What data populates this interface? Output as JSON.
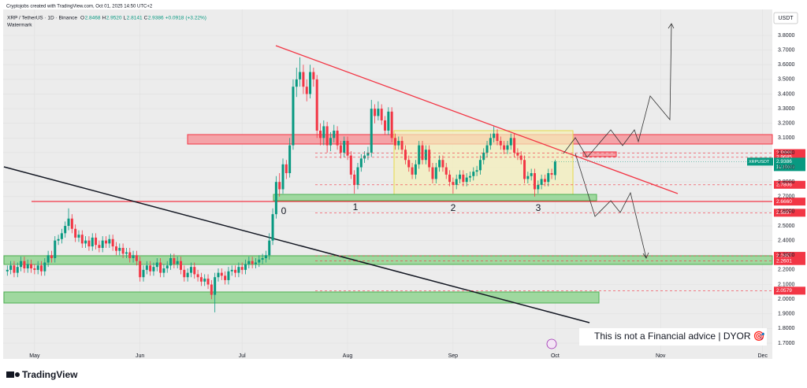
{
  "chart_data": {
    "type": "candlestick",
    "credit": "Cryptojobs created with TradingView.com, Oct 01, 2025 14:50 UTC+2",
    "symbol": "XRP / TetherUS · 1D · Binance",
    "ohlc_letters": [
      "O",
      "H",
      "L",
      "C"
    ],
    "last_value_labels": [
      "2.8468",
      "2.9520",
      "2.8141",
      "2.9386"
    ],
    "change": {
      "value": 0.0918,
      "label": "+0.0918"
    },
    "change_pct": {
      "value": 3.22,
      "label": "(+3.22%)"
    },
    "watermark": "Watermark",
    "currency": "USDT",
    "up_color": "#089981",
    "down_color": "#f23645",
    "xlim": [
      -1,
      226
    ],
    "xticks": [
      {
        "value": 8,
        "label": "May"
      },
      {
        "value": 39,
        "label": "Jun"
      },
      {
        "value": 69,
        "label": "Jul"
      },
      {
        "value": 100,
        "label": "Aug"
      },
      {
        "value": 131,
        "label": "Sep"
      },
      {
        "value": 161,
        "label": "Oct"
      },
      {
        "value": 192,
        "label": "Nov"
      },
      {
        "value": 222,
        "label": "Dec"
      }
    ],
    "ylim": [
      1.6,
      3.96
    ],
    "yticks": [
      {
        "value": 1.7,
        "label": "1.7000"
      },
      {
        "value": 1.8,
        "label": "1.8000"
      },
      {
        "value": 1.9,
        "label": "1.9000"
      },
      {
        "value": 2.0,
        "label": "2.0000"
      },
      {
        "value": 2.1,
        "label": "2.1000"
      },
      {
        "value": 2.2,
        "label": "2.2000"
      },
      {
        "value": 2.3,
        "label": "2.3000"
      },
      {
        "value": 2.4,
        "label": "2.4000"
      },
      {
        "value": 2.5,
        "label": "2.5000"
      },
      {
        "value": 2.6,
        "label": "2.6000"
      },
      {
        "value": 2.7,
        "label": "2.7000"
      },
      {
        "value": 2.8,
        "label": "2.8000"
      },
      {
        "value": 2.9,
        "label": "2.9000"
      },
      {
        "value": 3.0,
        "label": "3.0000"
      },
      {
        "value": 3.1,
        "label": "3.1000"
      },
      {
        "value": 3.2,
        "label": "3.2000"
      },
      {
        "value": 3.3,
        "label": "3.3000"
      },
      {
        "value": 3.4,
        "label": "3.4000"
      },
      {
        "value": 3.5,
        "label": "3.5000"
      },
      {
        "value": 3.6,
        "label": "3.6000"
      },
      {
        "value": 3.7,
        "label": "3.7000"
      },
      {
        "value": 3.8,
        "label": "3.8000"
      }
    ],
    "levels": [
      {
        "value": 2.9969,
        "label": "2.9969",
        "color": "#f23645"
      },
      {
        "value": 2.9685,
        "label": "2.9685",
        "color": "#f23645"
      },
      {
        "value": 2.7806,
        "label": "2.7806",
        "color": "#f23645"
      },
      {
        "value": 2.666,
        "label": "2.6660",
        "color": "#f23645"
      },
      {
        "value": 2.5897,
        "label": "2.5897",
        "color": "#f23645"
      },
      {
        "value": 2.2957,
        "label": "2.2957",
        "color": "#f23645"
      },
      {
        "value": 2.2601,
        "label": "2.2601",
        "color": "#f23645"
      },
      {
        "value": 2.0579,
        "label": "2.0579",
        "color": "#f23645"
      }
    ],
    "last_price": {
      "value": 2.9386,
      "label": "2.9386",
      "name": "XRPUSDT",
      "countdown": "11:10:00",
      "color": "#089981"
    },
    "pattern_labels": [
      "0",
      "1",
      "2",
      "3"
    ],
    "disclaimer": "This is not a Financial advice | DYOR 🎯",
    "brand": "TradingView",
    "ohlc": [
      [
        2.19,
        2.23,
        2.16,
        2.2
      ],
      [
        2.2,
        2.26,
        2.17,
        2.23
      ],
      [
        2.23,
        2.26,
        2.15,
        2.18
      ],
      [
        2.18,
        2.25,
        2.15,
        2.22
      ],
      [
        2.22,
        2.29,
        2.19,
        2.26
      ],
      [
        2.26,
        2.29,
        2.18,
        2.21
      ],
      [
        2.21,
        2.27,
        2.18,
        2.24
      ],
      [
        2.24,
        2.27,
        2.18,
        2.21
      ],
      [
        2.21,
        2.24,
        2.17,
        2.2
      ],
      [
        2.2,
        2.26,
        2.17,
        2.23
      ],
      [
        2.23,
        2.26,
        2.16,
        2.19
      ],
      [
        2.19,
        2.28,
        2.16,
        2.25
      ],
      [
        2.25,
        2.33,
        2.22,
        2.3
      ],
      [
        2.3,
        2.33,
        2.25,
        2.28
      ],
      [
        2.28,
        2.43,
        2.25,
        2.4
      ],
      [
        2.4,
        2.44,
        2.37,
        2.41
      ],
      [
        2.41,
        2.48,
        2.38,
        2.45
      ],
      [
        2.45,
        2.53,
        2.42,
        2.5
      ],
      [
        2.5,
        2.62,
        2.47,
        2.55
      ],
      [
        2.55,
        2.58,
        2.45,
        2.48
      ],
      [
        2.48,
        2.51,
        2.39,
        2.42
      ],
      [
        2.42,
        2.47,
        2.39,
        2.44
      ],
      [
        2.44,
        2.47,
        2.35,
        2.38
      ],
      [
        2.38,
        2.43,
        2.35,
        2.4
      ],
      [
        2.4,
        2.43,
        2.33,
        2.36
      ],
      [
        2.36,
        2.45,
        2.33,
        2.42
      ],
      [
        2.42,
        2.45,
        2.34,
        2.37
      ],
      [
        2.37,
        2.4,
        2.32,
        2.35
      ],
      [
        2.35,
        2.43,
        2.32,
        2.4
      ],
      [
        2.4,
        2.43,
        2.35,
        2.38
      ],
      [
        2.38,
        2.44,
        2.35,
        2.41
      ],
      [
        2.41,
        2.44,
        2.33,
        2.36
      ],
      [
        2.36,
        2.39,
        2.3,
        2.33
      ],
      [
        2.33,
        2.38,
        2.3,
        2.35
      ],
      [
        2.35,
        2.38,
        2.28,
        2.31
      ],
      [
        2.31,
        2.35,
        2.28,
        2.32
      ],
      [
        2.32,
        2.35,
        2.25,
        2.28
      ],
      [
        2.28,
        2.33,
        2.25,
        2.3
      ],
      [
        2.3,
        2.33,
        2.23,
        2.26
      ],
      [
        2.26,
        2.29,
        2.12,
        2.15
      ],
      [
        2.15,
        2.23,
        2.12,
        2.2
      ],
      [
        2.2,
        2.26,
        2.17,
        2.23
      ],
      [
        2.23,
        2.26,
        2.16,
        2.19
      ],
      [
        2.19,
        2.25,
        2.16,
        2.22
      ],
      [
        2.22,
        2.28,
        2.19,
        2.25
      ],
      [
        2.25,
        2.28,
        2.15,
        2.18
      ],
      [
        2.18,
        2.24,
        2.15,
        2.21
      ],
      [
        2.21,
        2.26,
        2.18,
        2.23
      ],
      [
        2.23,
        2.31,
        2.2,
        2.28
      ],
      [
        2.28,
        2.31,
        2.21,
        2.24
      ],
      [
        2.24,
        2.29,
        2.21,
        2.26
      ],
      [
        2.26,
        2.29,
        2.17,
        2.2
      ],
      [
        2.2,
        2.23,
        2.12,
        2.15
      ],
      [
        2.15,
        2.21,
        2.12,
        2.18
      ],
      [
        2.18,
        2.25,
        2.15,
        2.22
      ],
      [
        2.22,
        2.25,
        2.14,
        2.17
      ],
      [
        2.17,
        2.2,
        2.12,
        2.15
      ],
      [
        2.15,
        2.18,
        2.09,
        2.12
      ],
      [
        2.12,
        2.17,
        2.09,
        2.14
      ],
      [
        2.14,
        2.17,
        2.07,
        2.1
      ],
      [
        2.1,
        2.13,
        2.0,
        2.03
      ],
      [
        2.03,
        2.18,
        1.91,
        2.15
      ],
      [
        2.15,
        2.21,
        2.12,
        2.18
      ],
      [
        2.18,
        2.21,
        2.13,
        2.16
      ],
      [
        2.16,
        2.19,
        2.1,
        2.13
      ],
      [
        2.13,
        2.22,
        2.1,
        2.19
      ],
      [
        2.19,
        2.23,
        2.16,
        2.2
      ],
      [
        2.2,
        2.23,
        2.15,
        2.18
      ],
      [
        2.18,
        2.25,
        2.15,
        2.22
      ],
      [
        2.22,
        2.25,
        2.17,
        2.2
      ],
      [
        2.2,
        2.27,
        2.17,
        2.24
      ],
      [
        2.24,
        2.29,
        2.21,
        2.26
      ],
      [
        2.26,
        2.29,
        2.21,
        2.24
      ],
      [
        2.24,
        2.28,
        2.21,
        2.25
      ],
      [
        2.25,
        2.3,
        2.22,
        2.27
      ],
      [
        2.27,
        2.31,
        2.24,
        2.28
      ],
      [
        2.28,
        2.33,
        2.25,
        2.3
      ],
      [
        2.3,
        2.45,
        2.27,
        2.4
      ],
      [
        2.4,
        2.62,
        2.37,
        2.58
      ],
      [
        2.58,
        2.84,
        2.55,
        2.8
      ],
      [
        2.8,
        2.86,
        2.7,
        2.75
      ],
      [
        2.75,
        2.96,
        2.72,
        2.92
      ],
      [
        2.92,
        2.95,
        2.82,
        2.86
      ],
      [
        2.86,
        3.1,
        2.83,
        3.05
      ],
      [
        3.05,
        3.5,
        3.02,
        3.45
      ],
      [
        3.45,
        3.58,
        3.38,
        3.5
      ],
      [
        3.5,
        3.65,
        3.45,
        3.55
      ],
      [
        3.55,
        3.6,
        3.4,
        3.45
      ],
      [
        3.45,
        3.5,
        3.35,
        3.4
      ],
      [
        3.4,
        3.6,
        3.37,
        3.55
      ],
      [
        3.55,
        3.58,
        3.45,
        3.5
      ],
      [
        3.5,
        3.53,
        3.1,
        3.15
      ],
      [
        3.15,
        3.2,
        3.05,
        3.1
      ],
      [
        3.1,
        3.22,
        3.05,
        3.18
      ],
      [
        3.18,
        3.21,
        3.0,
        3.05
      ],
      [
        3.05,
        3.14,
        3.01,
        3.1
      ],
      [
        3.1,
        3.19,
        3.07,
        3.15
      ],
      [
        3.15,
        3.18,
        3.02,
        3.05
      ],
      [
        3.05,
        3.08,
        2.96,
        3.0
      ],
      [
        3.0,
        3.11,
        2.97,
        3.08
      ],
      [
        3.08,
        3.11,
        2.95,
        2.98
      ],
      [
        2.98,
        3.01,
        2.82,
        2.85
      ],
      [
        2.85,
        2.88,
        2.72,
        2.78
      ],
      [
        2.78,
        2.93,
        2.75,
        2.9
      ],
      [
        2.9,
        2.99,
        2.87,
        2.96
      ],
      [
        2.96,
        3.01,
        2.93,
        2.98
      ],
      [
        2.98,
        3.04,
        2.95,
        3.0
      ],
      [
        3.0,
        3.36,
        2.97,
        3.3
      ],
      [
        3.3,
        3.33,
        3.2,
        3.25
      ],
      [
        3.25,
        3.35,
        3.22,
        3.3
      ],
      [
        3.3,
        3.33,
        3.19,
        3.22
      ],
      [
        3.22,
        3.25,
        3.12,
        3.15
      ],
      [
        3.15,
        3.31,
        3.12,
        3.28
      ],
      [
        3.28,
        3.31,
        3.07,
        3.1
      ],
      [
        3.1,
        3.13,
        3.02,
        3.05
      ],
      [
        3.05,
        3.11,
        3.02,
        3.08
      ],
      [
        3.08,
        3.11,
        2.99,
        3.02
      ],
      [
        3.02,
        3.05,
        2.92,
        2.95
      ],
      [
        2.95,
        2.98,
        2.87,
        2.9
      ],
      [
        2.9,
        2.93,
        2.82,
        2.85
      ],
      [
        2.85,
        2.95,
        2.82,
        2.92
      ],
      [
        2.92,
        3.08,
        2.89,
        3.05
      ],
      [
        3.05,
        3.08,
        2.92,
        2.95
      ],
      [
        2.95,
        3.05,
        2.92,
        3.02
      ],
      [
        3.02,
        3.05,
        2.87,
        2.9
      ],
      [
        2.9,
        2.93,
        2.79,
        2.82
      ],
      [
        2.82,
        2.93,
        2.79,
        2.9
      ],
      [
        2.9,
        2.98,
        2.87,
        2.95
      ],
      [
        2.95,
        2.98,
        2.87,
        2.9
      ],
      [
        2.9,
        2.93,
        2.82,
        2.85
      ],
      [
        2.85,
        2.88,
        2.77,
        2.8
      ],
      [
        2.8,
        2.83,
        2.72,
        2.78
      ],
      [
        2.78,
        2.85,
        2.75,
        2.82
      ],
      [
        2.82,
        2.88,
        2.79,
        2.85
      ],
      [
        2.85,
        2.88,
        2.77,
        2.8
      ],
      [
        2.8,
        2.86,
        2.77,
        2.83
      ],
      [
        2.83,
        2.87,
        2.8,
        2.84
      ],
      [
        2.84,
        2.9,
        2.81,
        2.87
      ],
      [
        2.87,
        2.91,
        2.84,
        2.88
      ],
      [
        2.88,
        2.98,
        2.85,
        2.95
      ],
      [
        2.95,
        3.03,
        2.92,
        3.0
      ],
      [
        3.0,
        3.08,
        2.97,
        3.05
      ],
      [
        3.05,
        3.13,
        3.02,
        3.1
      ],
      [
        3.1,
        3.18,
        3.07,
        3.13
      ],
      [
        3.13,
        3.16,
        3.05,
        3.08
      ],
      [
        3.08,
        3.11,
        3.02,
        3.05
      ],
      [
        3.05,
        3.08,
        2.99,
        3.02
      ],
      [
        3.02,
        3.08,
        2.99,
        3.05
      ],
      [
        3.05,
        3.13,
        3.02,
        3.1
      ],
      [
        3.1,
        3.13,
        2.97,
        3.0
      ],
      [
        3.0,
        3.03,
        2.95,
        2.98
      ],
      [
        2.98,
        3.01,
        2.92,
        2.95
      ],
      [
        2.95,
        2.98,
        2.79,
        2.82
      ],
      [
        2.82,
        2.87,
        2.79,
        2.84
      ],
      [
        2.84,
        2.89,
        2.81,
        2.86
      ],
      [
        2.86,
        2.89,
        2.7,
        2.75
      ],
      [
        2.75,
        2.81,
        2.72,
        2.78
      ],
      [
        2.78,
        2.85,
        2.75,
        2.82
      ],
      [
        2.82,
        2.85,
        2.77,
        2.8
      ],
      [
        2.8,
        2.89,
        2.77,
        2.86
      ],
      [
        2.86,
        2.89,
        2.82,
        2.85
      ],
      [
        2.8468,
        2.952,
        2.8141,
        2.9386
      ]
    ]
  }
}
